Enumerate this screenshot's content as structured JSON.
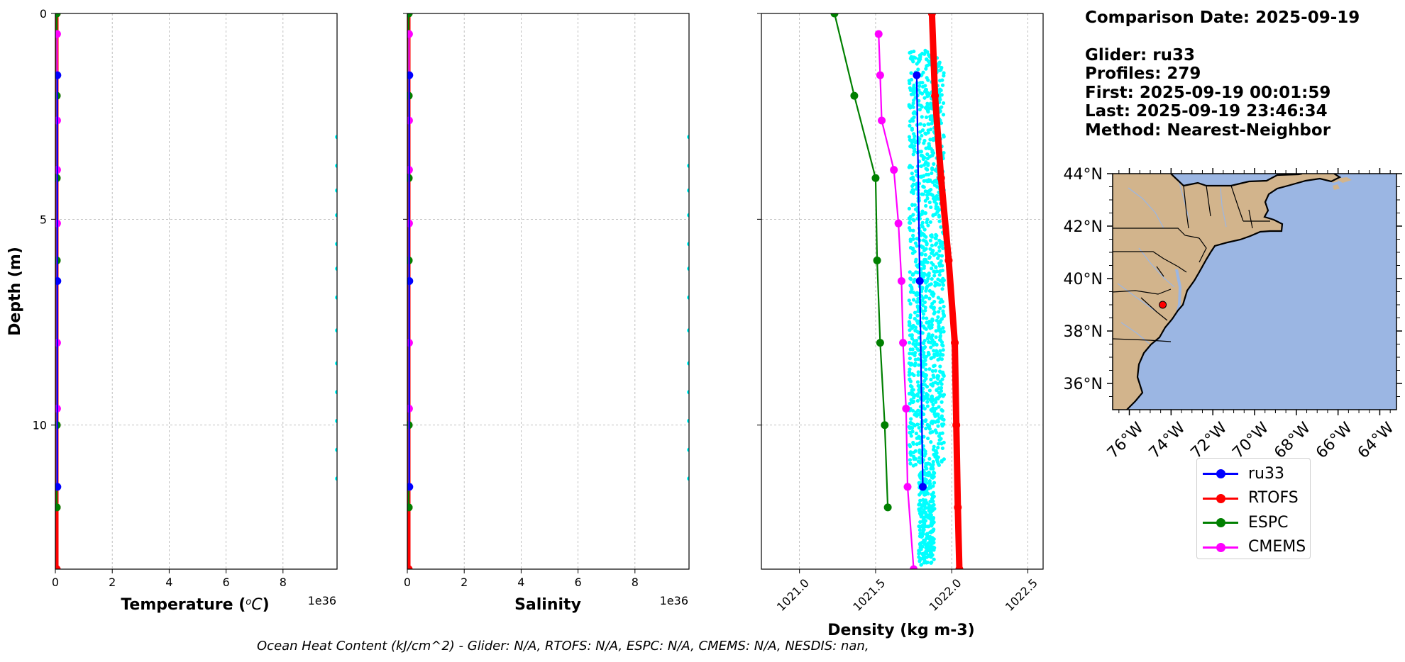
{
  "info": {
    "comparison_date": "Comparison Date: 2025-09-19",
    "glider": "Glider: ru33",
    "profiles": "Profiles: 279",
    "first": "First: 2025-09-19 00:01:59",
    "last": "Last: 2025-09-19 23:46:34",
    "method": "Method: Nearest-Neighbor"
  },
  "footer": "Ocean Heat Content (kJ/cm^2) - Glider: N/A,  RTOFS: N/A,  ESPC: N/A,  CMEMS: N/A,  NESDIS: nan,",
  "colors": {
    "ru33": "#0000ff",
    "rtofs": "#ff0000",
    "espc": "#008000",
    "cmems": "#ff00ff",
    "glider_scatter": "#00ffff",
    "land": "#d2b48c",
    "ocean": "#9bb6e3",
    "grid": "#b0b0b0"
  },
  "legend": [
    {
      "label": "ru33",
      "color": "#0000ff"
    },
    {
      "label": "RTOFS",
      "color": "#ff0000"
    },
    {
      "label": "ESPC",
      "color": "#008000"
    },
    {
      "label": "CMEMS",
      "color": "#ff00ff"
    }
  ],
  "chart_data": [
    {
      "type": "line",
      "id": "temperature",
      "xlabel": "Temperature (°C)",
      "ylabel": "Depth (m)",
      "x_offset_label": "1e36",
      "xlim": [
        0,
        9.9
      ],
      "ylim": [
        13.5,
        0
      ],
      "xticks": [
        0,
        2,
        4,
        6,
        8
      ],
      "yticks": [
        0,
        5,
        10
      ],
      "grid": true,
      "series": [
        {
          "name": "RTOFS",
          "x": [
            0.05,
            0.05,
            0.05,
            0.05,
            0.05,
            0.05,
            0.05,
            0.05
          ],
          "y": [
            0,
            2,
            4,
            6,
            8,
            10,
            12,
            13.5
          ]
        },
        {
          "name": "ESPC",
          "x": [
            0.05,
            0.05,
            0.05,
            0.05,
            0.05,
            0.05,
            0.05
          ],
          "y": [
            0,
            2,
            4,
            6,
            8,
            10,
            12
          ]
        },
        {
          "name": "CMEMS",
          "x": [
            0.06,
            0.06,
            0.06,
            0.06,
            0.06,
            0.06,
            0.06,
            0.06,
            0.06
          ],
          "y": [
            0.5,
            1.5,
            2.6,
            3.8,
            5.1,
            6.5,
            8,
            9.6,
            11.5
          ]
        },
        {
          "name": "ru33",
          "x": [
            0.07,
            0.07,
            0.07
          ],
          "y": [
            1.5,
            6.5,
            11.5
          ]
        }
      ],
      "scatter_name": "ru33 profiles",
      "scatter_x": 9.9,
      "scatter_y": [
        3.0,
        3.7,
        4.3,
        4.9,
        5.6,
        6.2,
        6.9,
        7.7,
        8.5,
        9.2,
        9.9,
        10.6,
        11.3
      ]
    },
    {
      "type": "line",
      "id": "salinity",
      "xlabel": "Salinity",
      "x_offset_label": "1e36",
      "xlim": [
        0,
        9.9
      ],
      "ylim": [
        13.5,
        0
      ],
      "xticks": [
        0,
        2,
        4,
        6,
        8
      ],
      "yticks": [
        0,
        5,
        10
      ],
      "grid": true,
      "series": [
        {
          "name": "RTOFS",
          "x": [
            0.05,
            0.05,
            0.05,
            0.05,
            0.05,
            0.05,
            0.05,
            0.05
          ],
          "y": [
            0,
            2,
            4,
            6,
            8,
            10,
            12,
            13.5
          ]
        },
        {
          "name": "ESPC",
          "x": [
            0.05,
            0.05,
            0.05,
            0.05,
            0.05,
            0.05,
            0.05
          ],
          "y": [
            0,
            2,
            4,
            6,
            8,
            10,
            12
          ]
        },
        {
          "name": "CMEMS",
          "x": [
            0.06,
            0.06,
            0.06,
            0.06,
            0.06,
            0.06,
            0.06,
            0.06,
            0.06
          ],
          "y": [
            0.5,
            1.5,
            2.6,
            3.8,
            5.1,
            6.5,
            8,
            9.6,
            11.5
          ]
        },
        {
          "name": "ru33",
          "x": [
            0.07,
            0.07,
            0.07
          ],
          "y": [
            1.5,
            6.5,
            11.5
          ]
        }
      ],
      "scatter_name": "ru33 profiles",
      "scatter_x": 9.9,
      "scatter_y": [
        3.0,
        3.7,
        4.3,
        4.9,
        5.6,
        6.2,
        6.9,
        7.7,
        8.5,
        9.2,
        9.9,
        10.6,
        11.3
      ]
    },
    {
      "type": "line",
      "id": "density",
      "xlabel": "Density (kg m-3)",
      "xlim": [
        1020.75,
        1022.6
      ],
      "ylim": [
        13.5,
        0
      ],
      "xticks": [
        1021.0,
        1021.5,
        1022.0,
        1022.5
      ],
      "xticklabels": [
        "1021.0",
        "1021.5",
        "1022.0",
        "1022.5"
      ],
      "yticks": [
        0,
        5,
        10
      ],
      "grid": true,
      "series": [
        {
          "name": "ESPC",
          "x": [
            1021.23,
            1021.36,
            1021.5,
            1021.51,
            1021.53,
            1021.56,
            1021.58
          ],
          "y": [
            0,
            2,
            4,
            6,
            8,
            10,
            12
          ]
        },
        {
          "name": "CMEMS",
          "x": [
            1021.52,
            1021.53,
            1021.54,
            1021.62,
            1021.65,
            1021.67,
            1021.68,
            1021.7,
            1021.71,
            1021.75
          ],
          "y": [
            0.5,
            1.5,
            2.6,
            3.8,
            5.1,
            6.5,
            8,
            9.6,
            11.5,
            13.5
          ]
        },
        {
          "name": "RTOFS",
          "x": [
            1021.87,
            1021.89,
            1021.93,
            1021.98,
            1022.02,
            1022.03,
            1022.04,
            1022.05
          ],
          "y": [
            0,
            2,
            4,
            6,
            8,
            10,
            12,
            13.5
          ]
        },
        {
          "name": "ru33",
          "x": [
            1021.77,
            1021.79,
            1021.81
          ],
          "y": [
            1.5,
            6.5,
            11.5
          ]
        }
      ],
      "scatter_name": "ru33 profiles",
      "scatter_range": {
        "x_min": 1021.7,
        "x_max": 1021.93,
        "y_min": 0.9,
        "y_max": 13.4
      }
    }
  ],
  "map": {
    "lat_labels": [
      "44°N",
      "42°N",
      "40°N",
      "38°N",
      "36°N"
    ],
    "lon_labels": [
      "76°W",
      "74°W",
      "72°W",
      "70°W",
      "68°W",
      "66°W",
      "64°W"
    ],
    "lat_values": [
      44,
      42,
      40,
      38,
      36
    ],
    "lon_values": [
      -76,
      -74,
      -72,
      -70,
      -68,
      -66,
      -64
    ],
    "extent": {
      "lon_min": -76.8,
      "lon_max": -63.2,
      "lat_min": 35,
      "lat_max": 44
    },
    "marker": {
      "name": "glider position",
      "lon": -74.4,
      "lat": 39.0
    }
  }
}
